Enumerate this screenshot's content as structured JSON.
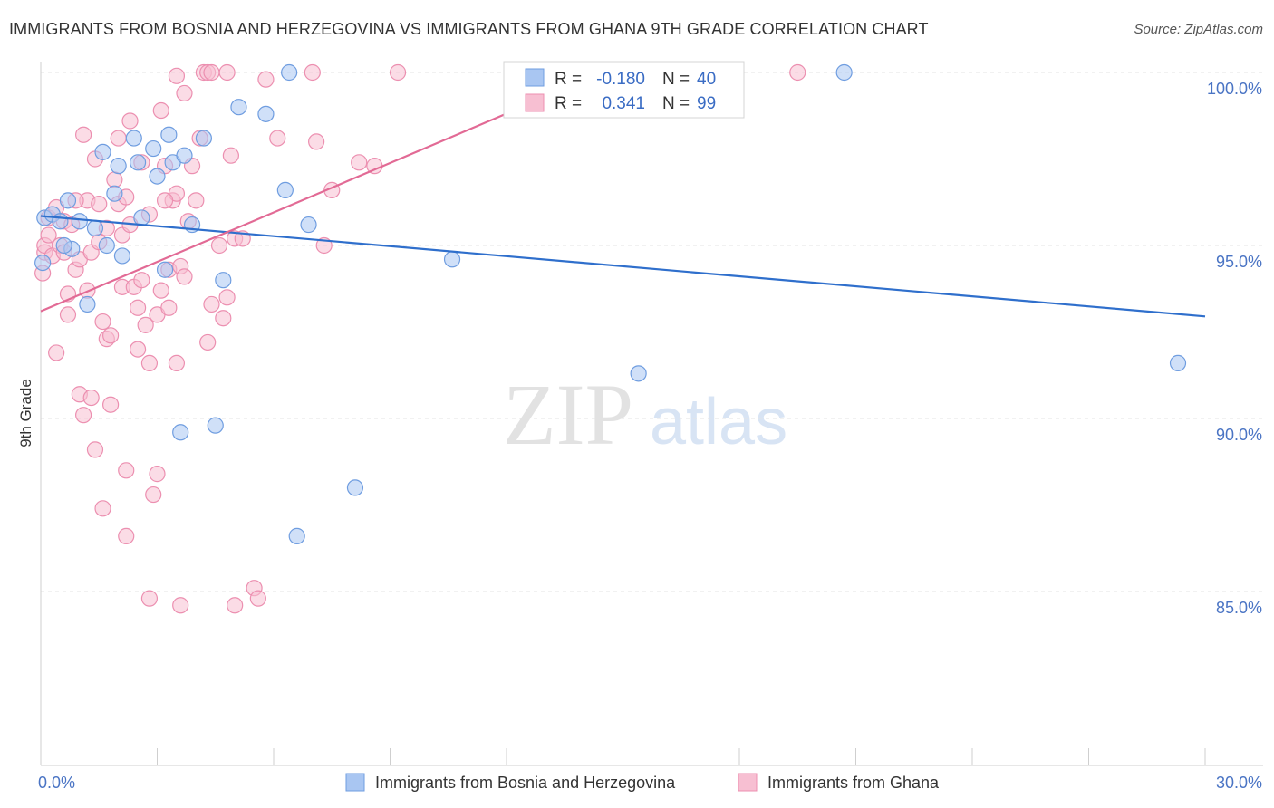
{
  "header": {
    "title": "IMMIGRANTS FROM BOSNIA AND HERZEGOVINA VS IMMIGRANTS FROM GHANA 9TH GRADE CORRELATION CHART",
    "source": "Source: ZipAtlas.com"
  },
  "watermark": {
    "zip": "ZIP",
    "atlas": "atlas"
  },
  "legend": {
    "r_label": "R =",
    "n_label": "N =",
    "rows": [
      {
        "r": "-0.180",
        "n": "40"
      },
      {
        "r": "0.341",
        "n": "99"
      }
    ]
  },
  "chart_data": {
    "type": "scatter",
    "title": "IMMIGRANTS FROM BOSNIA AND HERZEGOVINA VS IMMIGRANTS FROM GHANA 9TH GRADE CORRELATION CHART",
    "xlabel": "",
    "ylabel": "9th Grade",
    "xlim": [
      0,
      30
    ],
    "ylim": [
      80.5,
      100.8
    ],
    "x_tick_labels": [
      "0.0%",
      "30.0%"
    ],
    "y_ticks": [
      {
        "value": 85,
        "label": "85.0%"
      },
      {
        "value": 90,
        "label": "90.0%"
      },
      {
        "value": 95,
        "label": "95.0%"
      },
      {
        "value": 100,
        "label": "100.0%"
      }
    ],
    "colors": {
      "bosnia_fill": "#a9c6f2",
      "bosnia_stroke": "#6f9de0",
      "bosnia_line": "#2f6fcc",
      "ghana_fill": "#f7bfd2",
      "ghana_stroke": "#ec8fb0",
      "ghana_line": "#e26a95"
    },
    "series": [
      {
        "name": "Immigrants from Bosnia and Herzegovina",
        "r": -0.18,
        "n": 40,
        "trend": {
          "x": [
            0,
            30
          ],
          "y": [
            95.85,
            92.95
          ]
        },
        "points": [
          [
            0.1,
            95.8
          ],
          [
            0.3,
            95.9
          ],
          [
            0.5,
            95.7
          ],
          [
            0.7,
            96.3
          ],
          [
            0.8,
            94.9
          ],
          [
            1.0,
            95.7
          ],
          [
            1.2,
            93.3
          ],
          [
            1.4,
            95.5
          ],
          [
            1.6,
            97.7
          ],
          [
            1.7,
            95.0
          ],
          [
            1.9,
            96.5
          ],
          [
            2.1,
            94.7
          ],
          [
            2.4,
            98.1
          ],
          [
            2.5,
            97.4
          ],
          [
            2.6,
            95.8
          ],
          [
            2.9,
            97.8
          ],
          [
            3.0,
            97.0
          ],
          [
            3.2,
            94.3
          ],
          [
            3.3,
            98.2
          ],
          [
            3.4,
            97.4
          ],
          [
            3.6,
            89.6
          ],
          [
            3.7,
            97.6
          ],
          [
            3.9,
            95.6
          ],
          [
            4.2,
            98.1
          ],
          [
            4.5,
            89.8
          ],
          [
            4.7,
            94.0
          ],
          [
            5.1,
            99.0
          ],
          [
            5.8,
            98.8
          ],
          [
            6.3,
            96.6
          ],
          [
            6.4,
            100.0
          ],
          [
            6.6,
            86.6
          ],
          [
            6.9,
            95.6
          ],
          [
            8.1,
            88.0
          ],
          [
            10.6,
            94.6
          ],
          [
            15.4,
            91.3
          ],
          [
            20.7,
            100.0
          ],
          [
            29.3,
            91.6
          ],
          [
            0.05,
            94.5
          ],
          [
            0.6,
            95.0
          ],
          [
            2.0,
            97.3
          ]
        ]
      },
      {
        "name": "Immigrants from Ghana",
        "r": 0.341,
        "n": 99,
        "trend": {
          "x": [
            0,
            14.5
          ],
          "y": [
            93.1,
            100.0
          ]
        },
        "points": [
          [
            0.05,
            94.2
          ],
          [
            0.1,
            94.8
          ],
          [
            0.1,
            95.0
          ],
          [
            0.2,
            95.3
          ],
          [
            0.2,
            95.8
          ],
          [
            0.3,
            94.7
          ],
          [
            0.4,
            91.9
          ],
          [
            0.5,
            95.0
          ],
          [
            0.6,
            94.8
          ],
          [
            0.6,
            95.7
          ],
          [
            0.7,
            93.6
          ],
          [
            0.7,
            93.0
          ],
          [
            0.8,
            95.6
          ],
          [
            0.9,
            94.3
          ],
          [
            1.0,
            94.6
          ],
          [
            1.0,
            90.7
          ],
          [
            1.1,
            90.1
          ],
          [
            1.2,
            96.3
          ],
          [
            1.2,
            93.7
          ],
          [
            1.3,
            94.8
          ],
          [
            1.3,
            90.6
          ],
          [
            1.4,
            89.1
          ],
          [
            1.4,
            97.5
          ],
          [
            1.5,
            96.2
          ],
          [
            1.5,
            95.1
          ],
          [
            1.6,
            92.8
          ],
          [
            1.6,
            87.4
          ],
          [
            1.7,
            92.3
          ],
          [
            1.8,
            92.4
          ],
          [
            1.8,
            90.4
          ],
          [
            1.9,
            96.9
          ],
          [
            2.0,
            98.1
          ],
          [
            2.0,
            96.2
          ],
          [
            2.1,
            93.8
          ],
          [
            2.1,
            95.3
          ],
          [
            2.2,
            88.5
          ],
          [
            2.2,
            86.6
          ],
          [
            2.3,
            98.6
          ],
          [
            2.3,
            95.6
          ],
          [
            2.4,
            93.8
          ],
          [
            2.5,
            92.0
          ],
          [
            2.5,
            93.2
          ],
          [
            2.6,
            94.0
          ],
          [
            2.6,
            97.4
          ],
          [
            2.7,
            92.7
          ],
          [
            2.8,
            91.6
          ],
          [
            2.8,
            95.9
          ],
          [
            2.9,
            87.8
          ],
          [
            3.0,
            93.0
          ],
          [
            3.0,
            88.4
          ],
          [
            3.1,
            98.9
          ],
          [
            3.1,
            93.7
          ],
          [
            3.2,
            97.3
          ],
          [
            3.3,
            93.2
          ],
          [
            3.3,
            94.3
          ],
          [
            3.4,
            96.3
          ],
          [
            3.5,
            91.6
          ],
          [
            3.5,
            99.9
          ],
          [
            3.5,
            96.5
          ],
          [
            3.6,
            94.4
          ],
          [
            3.7,
            99.4
          ],
          [
            3.7,
            94.1
          ],
          [
            3.8,
            95.7
          ],
          [
            3.9,
            97.3
          ],
          [
            4.0,
            96.3
          ],
          [
            4.1,
            98.1
          ],
          [
            4.2,
            100.0
          ],
          [
            4.3,
            100.0
          ],
          [
            4.3,
            92.2
          ],
          [
            4.4,
            93.3
          ],
          [
            4.6,
            95.0
          ],
          [
            4.7,
            92.9
          ],
          [
            4.8,
            93.5
          ],
          [
            4.9,
            97.6
          ],
          [
            5.0,
            95.2
          ],
          [
            5.0,
            84.6
          ],
          [
            5.2,
            95.2
          ],
          [
            5.5,
            85.1
          ],
          [
            5.6,
            84.8
          ],
          [
            5.8,
            99.8
          ],
          [
            6.1,
            98.1
          ],
          [
            7.0,
            100.0
          ],
          [
            7.1,
            98.0
          ],
          [
            7.3,
            95.0
          ],
          [
            7.5,
            96.6
          ],
          [
            8.2,
            97.4
          ],
          [
            8.6,
            97.3
          ],
          [
            9.2,
            100.0
          ],
          [
            19.5,
            100.0
          ],
          [
            2.2,
            96.4
          ],
          [
            1.7,
            95.5
          ],
          [
            0.9,
            96.3
          ],
          [
            0.4,
            96.1
          ],
          [
            3.2,
            96.3
          ],
          [
            2.8,
            84.8
          ],
          [
            3.6,
            84.6
          ],
          [
            4.8,
            100.0
          ],
          [
            4.4,
            100.0
          ],
          [
            1.1,
            98.2
          ]
        ]
      }
    ]
  },
  "bottom_legend": {
    "items": [
      "Immigrants from Bosnia and Herzegovina",
      "Immigrants from Ghana"
    ]
  }
}
